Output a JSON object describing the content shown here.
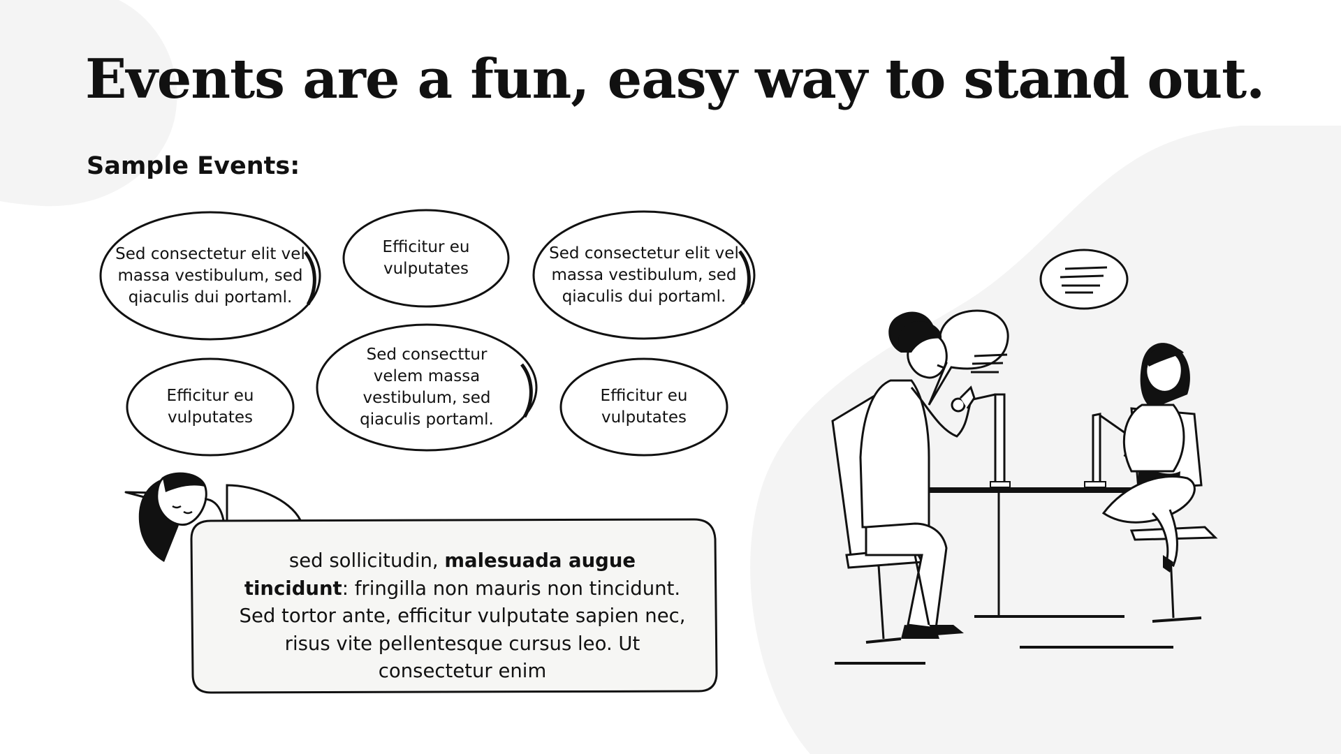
{
  "title": "Events are a fun, easy way to stand out.",
  "subtitle": "Sample Events:",
  "events": [
    {
      "text": "Sed consectetur elit vel massa vestibulum, sed qiaculis dui portaml."
    },
    {
      "text": "Efficitur eu vulputates"
    },
    {
      "text": "Sed consectetur elit vel massa vestibulum, sed qiaculis dui portaml."
    },
    {
      "text": "Efficitur eu vulputates"
    },
    {
      "text": "Sed consecttur velem massa vestibulum, sed qiaculis portaml."
    },
    {
      "text": "Efficitur eu vulputates"
    }
  ],
  "card": {
    "text_before": "sed sollicitudin, ",
    "text_bold": "malesuada augue tincidunt",
    "text_after": ": fringilla non mauris non tincidunt. Sed tortor ante, efficitur vulputate sapien nec, risus vite pellentesque cursus leo. Ut consectetur enim"
  },
  "colors": {
    "ink": "#111111",
    "blob": "#f4f4f4",
    "card_fill": "#f6f6f4"
  }
}
